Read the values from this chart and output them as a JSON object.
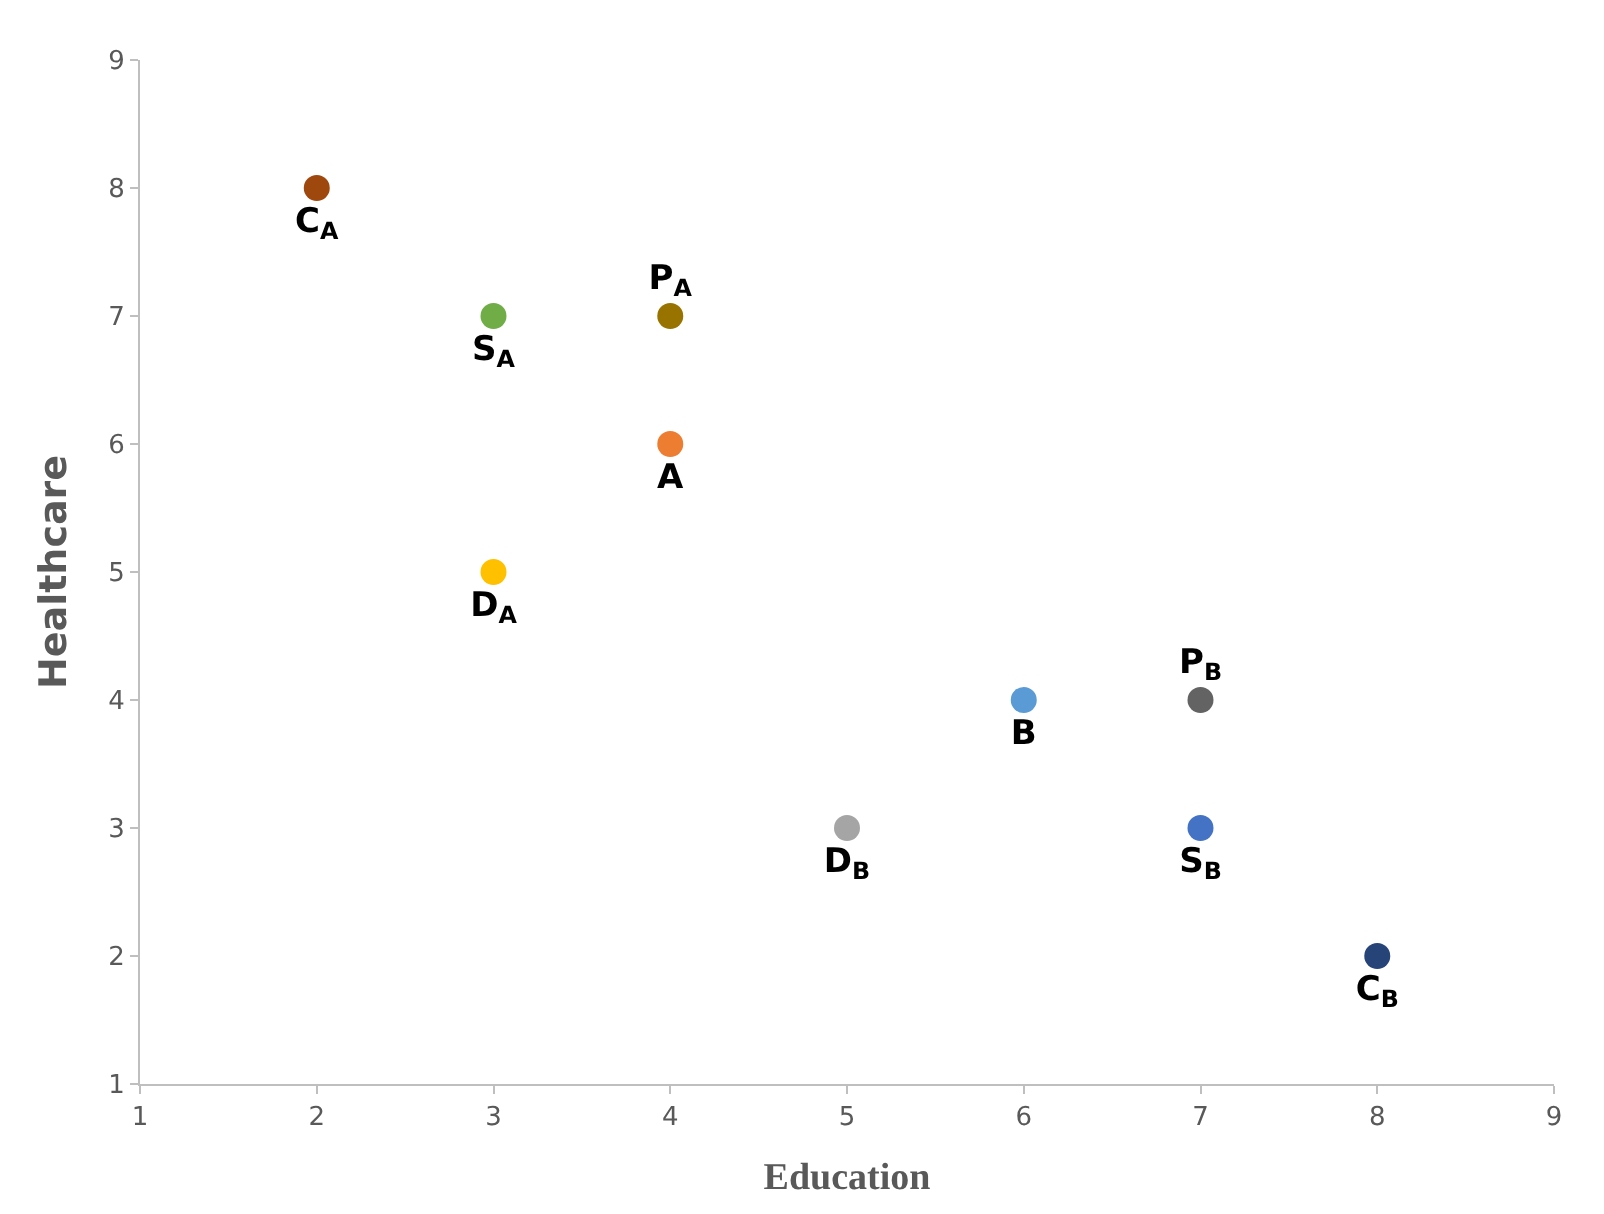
{
  "chart_data": {
    "type": "scatter",
    "xlabel": "Education",
    "ylabel": "Healthcare",
    "xlim": [
      1,
      9
    ],
    "xticks": [
      1,
      2,
      3,
      4,
      5,
      6,
      7,
      8,
      9
    ],
    "ylim": [
      1,
      9
    ],
    "yticks": [
      1,
      2,
      3,
      4,
      5,
      6,
      7,
      8,
      9
    ],
    "grid": false,
    "legend": false,
    "marker": "circle",
    "series": [
      {
        "name": "C$_{A}$",
        "color": "#9e480e",
        "x": [
          2
        ],
        "values": [
          8
        ]
      },
      {
        "name": "S$_{A}$",
        "color": "#70ad47",
        "x": [
          3
        ],
        "values": [
          7
        ]
      },
      {
        "name": "P$_{A}$",
        "color": "#997300",
        "x": [
          4
        ],
        "values": [
          7
        ]
      },
      {
        "name": "A",
        "color": "#ed7d31",
        "x": [
          4
        ],
        "values": [
          6
        ]
      },
      {
        "name": "D$_{A}$",
        "color": "#ffc000",
        "x": [
          3
        ],
        "values": [
          5
        ]
      },
      {
        "name": "B",
        "color": "#5b9bd5",
        "x": [
          6
        ],
        "values": [
          4
        ]
      },
      {
        "name": "P$_{B}$",
        "color": "#636363",
        "x": [
          7
        ],
        "values": [
          4
        ]
      },
      {
        "name": "D$_{B}$",
        "color": "#a5a5a5",
        "x": [
          5
        ],
        "values": [
          3
        ]
      },
      {
        "name": "S$_{B}$",
        "color": "#4472c4",
        "x": [
          7
        ],
        "values": [
          3
        ]
      },
      {
        "name": "C$_{B}$",
        "color": "#264478",
        "x": [
          8
        ],
        "values": [
          2
        ]
      }
    ]
  }
}
